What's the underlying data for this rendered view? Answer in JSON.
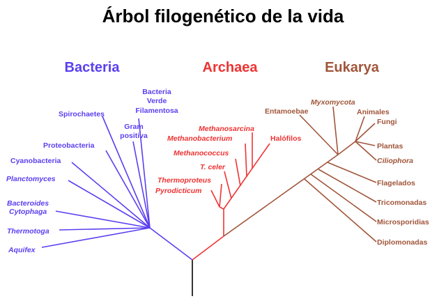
{
  "title": "Árbol filogenético de la vida",
  "colors": {
    "bacteria": "#5a3ff0",
    "archaea": "#ee3333",
    "eukarya": "#a0553a",
    "root": "#333333"
  },
  "domains": {
    "bacteria": "Bacteria",
    "archaea": "Archaea",
    "eukarya": "Eukarya"
  },
  "bacteria_taxa": {
    "aquifex": "Aquifex",
    "thermotoga": "Thermotoga",
    "bacteroides": "Bacteroides",
    "cytophaga": "Cytophaga",
    "planctomyces": "Planctomyces",
    "cyanobacteria": "Cyanobacteria",
    "proteobacteria": "Proteobacteria",
    "spirochaetes": "Spirochaetes",
    "gram_1": "Gram",
    "gram_2": "positiva",
    "green_1": "Bacteria",
    "green_2": "Verde",
    "green_3": "Filamentosa"
  },
  "archaea_taxa": {
    "pyrodicticum": "Pyrodicticum",
    "thermoproteus": "Thermoproteus",
    "tceler": "T. celer",
    "methanococcus": "Methanococcus",
    "methanobacterium": "Methanobacterium",
    "methanosarcina": "Methanosarcina",
    "halofilos": "Halófilos"
  },
  "eukarya_taxa": {
    "entamoebae": "Entamoebae",
    "myxomycota": "Myxomycota",
    "animales": "Animales",
    "fungi": "Fungi",
    "plantas": "Plantas",
    "ciliophora": "Ciliophora",
    "flagelados": "Flagelados",
    "tricomonadas": "Tricomonadas",
    "microsporidias": "Microsporidias",
    "diplomonadas": "Diplomonadas"
  }
}
